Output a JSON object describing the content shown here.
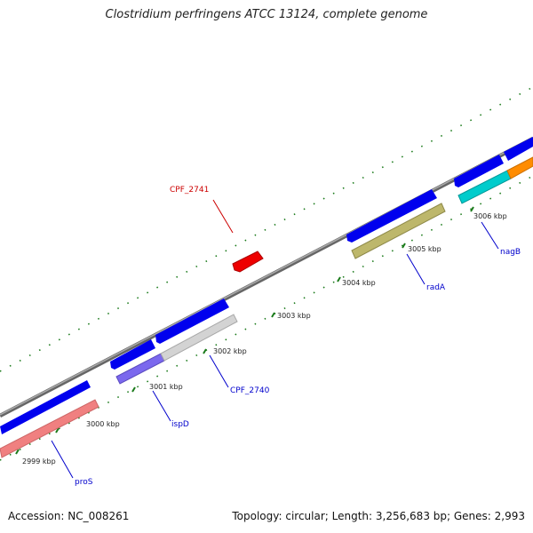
{
  "title": "Clostridium perfringens ATCC 13124, complete genome",
  "footer": {
    "accession": "Accession: NC_008261",
    "topology": "Topology: circular; Length: 3,256,683 bp; Genes: 2,993"
  },
  "kbp_labels": [
    "2999 kbp",
    "3000 kbp",
    "3001 kbp",
    "3002 kbp",
    "3003 kbp",
    "3004 kbp",
    "3005 kbp",
    "3006 kbp"
  ],
  "gene_labels": {
    "cpf2741": "CPF_2741",
    "cpf2740": "CPF_2740",
    "pros": "proS",
    "ispd": "ispD",
    "rada": "radA",
    "nagb": "nagB"
  },
  "colors": {
    "backbone": "#888888",
    "cds": "#0000ee",
    "tick": "#1a7a1a",
    "pros": "#f08080",
    "ispd": "#7b68ee",
    "cpf2740": "#d3d3d3",
    "rada": "#bdb76b",
    "cyan": "#00cccc",
    "orange": "#ff8c00",
    "red": "#ee0000",
    "label_blue": "#0000cc",
    "label_red": "#cc0000"
  }
}
